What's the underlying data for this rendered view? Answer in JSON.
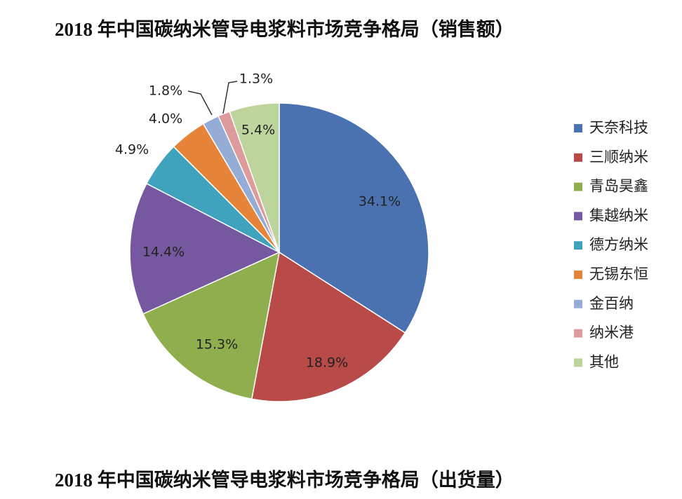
{
  "chart_data": {
    "type": "pie",
    "title": "2018 年中国碳纳米管导电浆料市场竞争格局（销售额）",
    "categories": [
      "天奈科技",
      "三顺纳米",
      "青岛昊鑫",
      "集越纳米",
      "德方纳米",
      "无锡东恒",
      "金百纳",
      "纳米港",
      "其他"
    ],
    "values": [
      34.1,
      18.9,
      15.3,
      14.4,
      4.9,
      4.0,
      1.8,
      1.3,
      5.4
    ],
    "value_labels": [
      "34.1%",
      "18.9%",
      "15.3%",
      "14.4%",
      "4.9%",
      "4.0%",
      "1.8%",
      "1.3%",
      "5.4%"
    ],
    "colors": [
      "#4a72b0",
      "#b84a47",
      "#8faf4e",
      "#7558a0",
      "#3fa3bd",
      "#e6853a",
      "#95acd6",
      "#dd9b9b",
      "#bdd49c"
    ],
    "legend": "right"
  },
  "next_heading": "2018 年中国碳纳米管导电浆料市场竞争格局（出货量）"
}
